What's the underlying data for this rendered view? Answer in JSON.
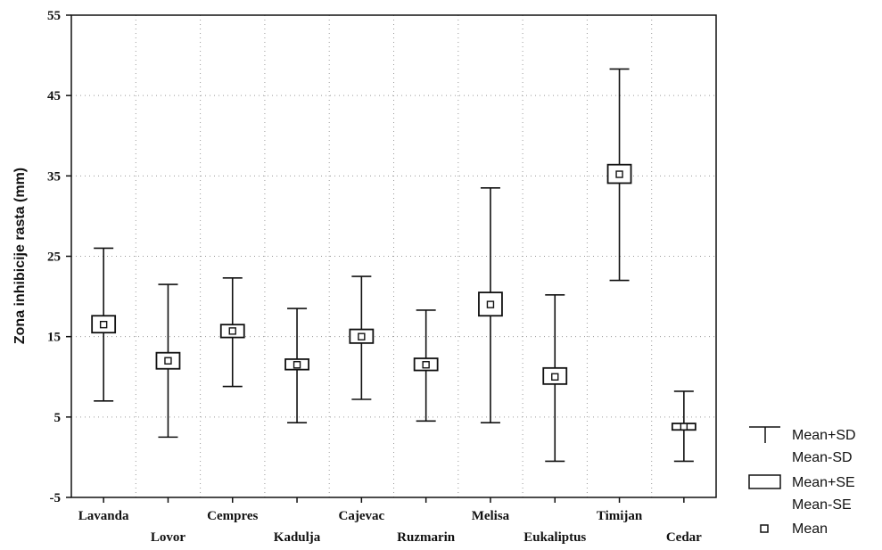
{
  "chart_data": {
    "type": "box",
    "ylabel": "Zona inhibicije rasta (mm)",
    "xlabel": "",
    "title": "",
    "ylim": [
      -5,
      55
    ],
    "yticks": [
      -5,
      5,
      15,
      25,
      35,
      45,
      55
    ],
    "grid": true,
    "legend_position": "right",
    "categories": [
      "Lavanda",
      "Lovor",
      "Cempres",
      "Kadulja",
      "Cajevac",
      "Ruzmarin",
      "Melisa",
      "Eukaliptus",
      "Timijan",
      "Cedar"
    ],
    "series": [
      {
        "name": "Mean",
        "values": [
          16.5,
          12.0,
          15.7,
          11.5,
          15.0,
          11.5,
          19.0,
          10.0,
          35.2,
          3.8
        ]
      },
      {
        "name": "Mean+SD",
        "values": [
          26.0,
          21.5,
          22.3,
          18.5,
          22.5,
          18.3,
          33.5,
          20.2,
          48.3,
          8.2
        ]
      },
      {
        "name": "Mean-SD",
        "values": [
          7.0,
          2.5,
          8.8,
          4.3,
          7.2,
          4.5,
          4.3,
          -0.5,
          22.0,
          -0.5
        ]
      },
      {
        "name": "Mean+SE",
        "values": [
          17.6,
          13.0,
          16.5,
          12.2,
          15.9,
          12.3,
          20.5,
          11.1,
          36.4,
          4.2
        ]
      },
      {
        "name": "Mean-SE",
        "values": [
          15.5,
          11.0,
          14.9,
          10.9,
          14.2,
          10.8,
          17.6,
          9.1,
          34.1,
          3.4
        ]
      }
    ]
  },
  "legend": {
    "sd_line1": "Mean+SD",
    "sd_line2": "Mean-SD",
    "se_line1": "Mean+SE",
    "se_line2": "Mean-SE",
    "mean": "Mean"
  }
}
